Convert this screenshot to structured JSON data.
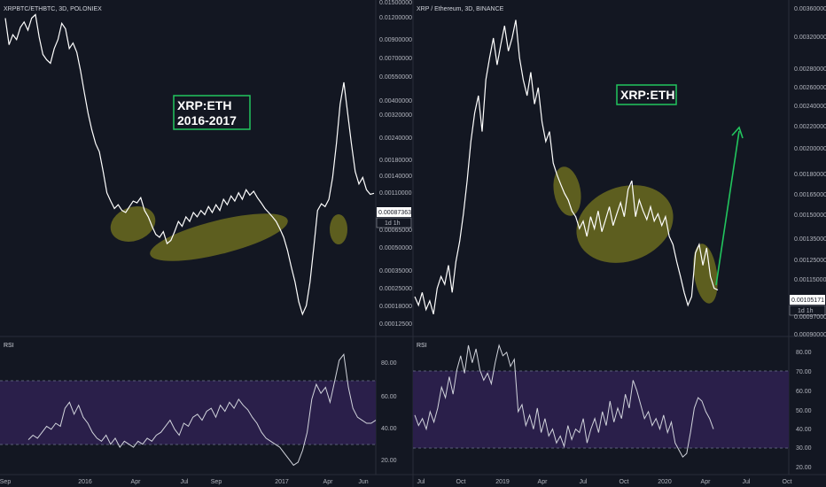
{
  "colors": {
    "background": "#131722",
    "price_line": "#ffffff",
    "rsi_line": "#d1d4dc",
    "highlight_fill": "#6b6b1f",
    "rsi_band": "#2a1f4a",
    "label_border": "#22c55e",
    "arrow": "#22c55e",
    "axis_text": "#b2b5be"
  },
  "chart_data": [
    {
      "type": "line",
      "title": "XRPBTC/ETHBTC, 3D, POLONIEX",
      "annotation": [
        "XRP:ETH",
        "2016-2017"
      ],
      "y_scale": "log",
      "y_ticks": [
        "0.01500000",
        "0.01200000",
        "0.00900000",
        "0.00700000",
        "0.00550000",
        "0.00400000",
        "0.00320000",
        "0.00240000",
        "0.00180000",
        "0.00140000",
        "0.00110000",
        "0.00087363",
        "0.00065000",
        "0.00050000",
        "0.00035000",
        "0.00025000",
        "0.00018000",
        "0.00012500"
      ],
      "x_ticks": [
        "Sep",
        "2016",
        "Apr",
        "Jul",
        "Sep",
        "2017",
        "Apr",
        "Jun"
      ],
      "last_price": "0.00087363",
      "countdown": "1d 1h",
      "series": [
        {
          "values": [
            0.0112,
            0.0076,
            0.0088,
            0.0082,
            0.0098,
            0.0106,
            0.0094,
            0.0112,
            0.0118,
            0.0085,
            0.0066,
            0.0061,
            0.0058,
            0.0072,
            0.0082,
            0.0104,
            0.0096,
            0.0072,
            0.0078,
            0.0068,
            0.0052,
            0.0038,
            0.0028,
            0.0022,
            0.0018,
            0.0016,
            0.0012,
            0.00088,
            0.00078,
            0.0007,
            0.00074,
            0.00068,
            0.00066,
            0.00072,
            0.00078,
            0.00076,
            0.00082,
            0.00068,
            0.00062,
            0.00054,
            0.00048,
            0.00046,
            0.0005,
            0.00042,
            0.00044,
            0.0005,
            0.00058,
            0.00054,
            0.00062,
            0.00058,
            0.00066,
            0.00062,
            0.00068,
            0.00064,
            0.00072,
            0.00066,
            0.00074,
            0.00068,
            0.0008,
            0.00074,
            0.00084,
            0.00078,
            0.00088,
            0.0008,
            0.00092,
            0.00085,
            0.0009,
            0.00082,
            0.00076,
            0.0007,
            0.00066,
            0.00062,
            0.00058,
            0.00052,
            0.00046,
            0.00038,
            0.0003,
            0.00024,
            0.00018,
            0.00015,
            0.00017,
            0.00024,
            0.0004,
            0.00068,
            0.00075,
            0.00072,
            0.0008,
            0.0011,
            0.0018,
            0.0032,
            0.0044,
            0.0028,
            0.0018,
            0.0012,
            0.001,
            0.0011,
            0.00092,
            0.00086,
            0.00087363
          ]
        }
      ]
    },
    {
      "type": "line",
      "title": "RSI",
      "y_ticks": [
        "80.00",
        "60.00",
        "40.00",
        "20.00"
      ],
      "band": [
        30,
        70
      ],
      "series": [
        {
          "values": [
            35,
            38,
            36,
            40,
            44,
            42,
            46,
            44,
            56,
            60,
            52,
            58,
            50,
            46,
            40,
            36,
            34,
            38,
            32,
            36,
            30,
            34,
            32,
            30,
            34,
            32,
            36,
            34,
            38,
            40,
            44,
            48,
            42,
            38,
            46,
            44,
            50,
            52,
            48,
            54,
            56,
            50,
            58,
            54,
            60,
            56,
            62,
            58,
            55,
            50,
            46,
            40,
            36,
            34,
            32,
            30,
            26,
            22,
            18,
            20,
            28,
            40,
            62,
            72,
            66,
            70,
            60,
            74,
            88,
            92,
            70,
            56,
            50,
            48,
            46,
            46,
            48
          ]
        }
      ]
    },
    {
      "type": "line",
      "title": "XRP / Ethereum, 3D, BINANCE",
      "annotation": [
        "XRP:ETH"
      ],
      "y_scale": "log",
      "y_ticks": [
        "0.00360000",
        "0.00320000",
        "0.00280000",
        "0.00260000",
        "0.00240000",
        "0.00220000",
        "0.00200000",
        "0.00180000",
        "0.00165000",
        "0.00150000",
        "0.00135000",
        "0.00125000",
        "0.00115000",
        "0.00105171",
        "0.00097000",
        "0.00090000"
      ],
      "x_ticks": [
        "Jul",
        "Oct",
        "2019",
        "Apr",
        "Jul",
        "Oct",
        "2020",
        "Apr",
        "Jul",
        "Oct"
      ],
      "last_price": "0.00105171",
      "countdown": "1d 1h",
      "series": [
        {
          "values": [
            0.00102,
            0.00098,
            0.00104,
            0.00096,
            0.001,
            0.00094,
            0.00106,
            0.00112,
            0.00108,
            0.00118,
            0.00104,
            0.0012,
            0.00132,
            0.0015,
            0.00175,
            0.0021,
            0.0024,
            0.0026,
            0.0022,
            0.0028,
            0.0031,
            0.0034,
            0.003,
            0.0033,
            0.0036,
            0.0032,
            0.0034,
            0.0037,
            0.0031,
            0.0028,
            0.0026,
            0.0029,
            0.0025,
            0.0027,
            0.0023,
            0.0021,
            0.0022,
            0.0019,
            0.0018,
            0.00172,
            0.00165,
            0.0016,
            0.00152,
            0.00148,
            0.0014,
            0.00145,
            0.00135,
            0.00148,
            0.0014,
            0.00152,
            0.00138,
            0.00146,
            0.00155,
            0.00142,
            0.0015,
            0.00158,
            0.00148,
            0.00168,
            0.00175,
            0.00148,
            0.0016,
            0.00152,
            0.00146,
            0.00155,
            0.00145,
            0.0015,
            0.00142,
            0.00148,
            0.00135,
            0.0013,
            0.0012,
            0.00112,
            0.00104,
            0.00098,
            0.00102,
            0.00125,
            0.0013,
            0.00118,
            0.00128,
            0.00112,
            0.00106,
            0.00105171
          ]
        }
      ]
    },
    {
      "type": "line",
      "title": "RSI",
      "y_ticks": [
        "80.00",
        "70.00",
        "60.00",
        "50.00",
        "40.00",
        "30.00",
        "20.00"
      ],
      "band": [
        30,
        70
      ],
      "series": [
        {
          "values": [
            46,
            40,
            44,
            38,
            48,
            42,
            50,
            62,
            56,
            68,
            58,
            72,
            80,
            70,
            86,
            76,
            84,
            72,
            66,
            70,
            64,
            76,
            86,
            80,
            82,
            74,
            78,
            48,
            52,
            40,
            46,
            38,
            50,
            36,
            44,
            34,
            38,
            30,
            34,
            28,
            40,
            32,
            38,
            36,
            44,
            30,
            38,
            44,
            36,
            48,
            40,
            54,
            42,
            50,
            44,
            58,
            50,
            66,
            60,
            52,
            44,
            48,
            40,
            44,
            38,
            46,
            36,
            42,
            30,
            26,
            22,
            24,
            36,
            50,
            56,
            54,
            48,
            44,
            38
          ]
        }
      ]
    }
  ]
}
